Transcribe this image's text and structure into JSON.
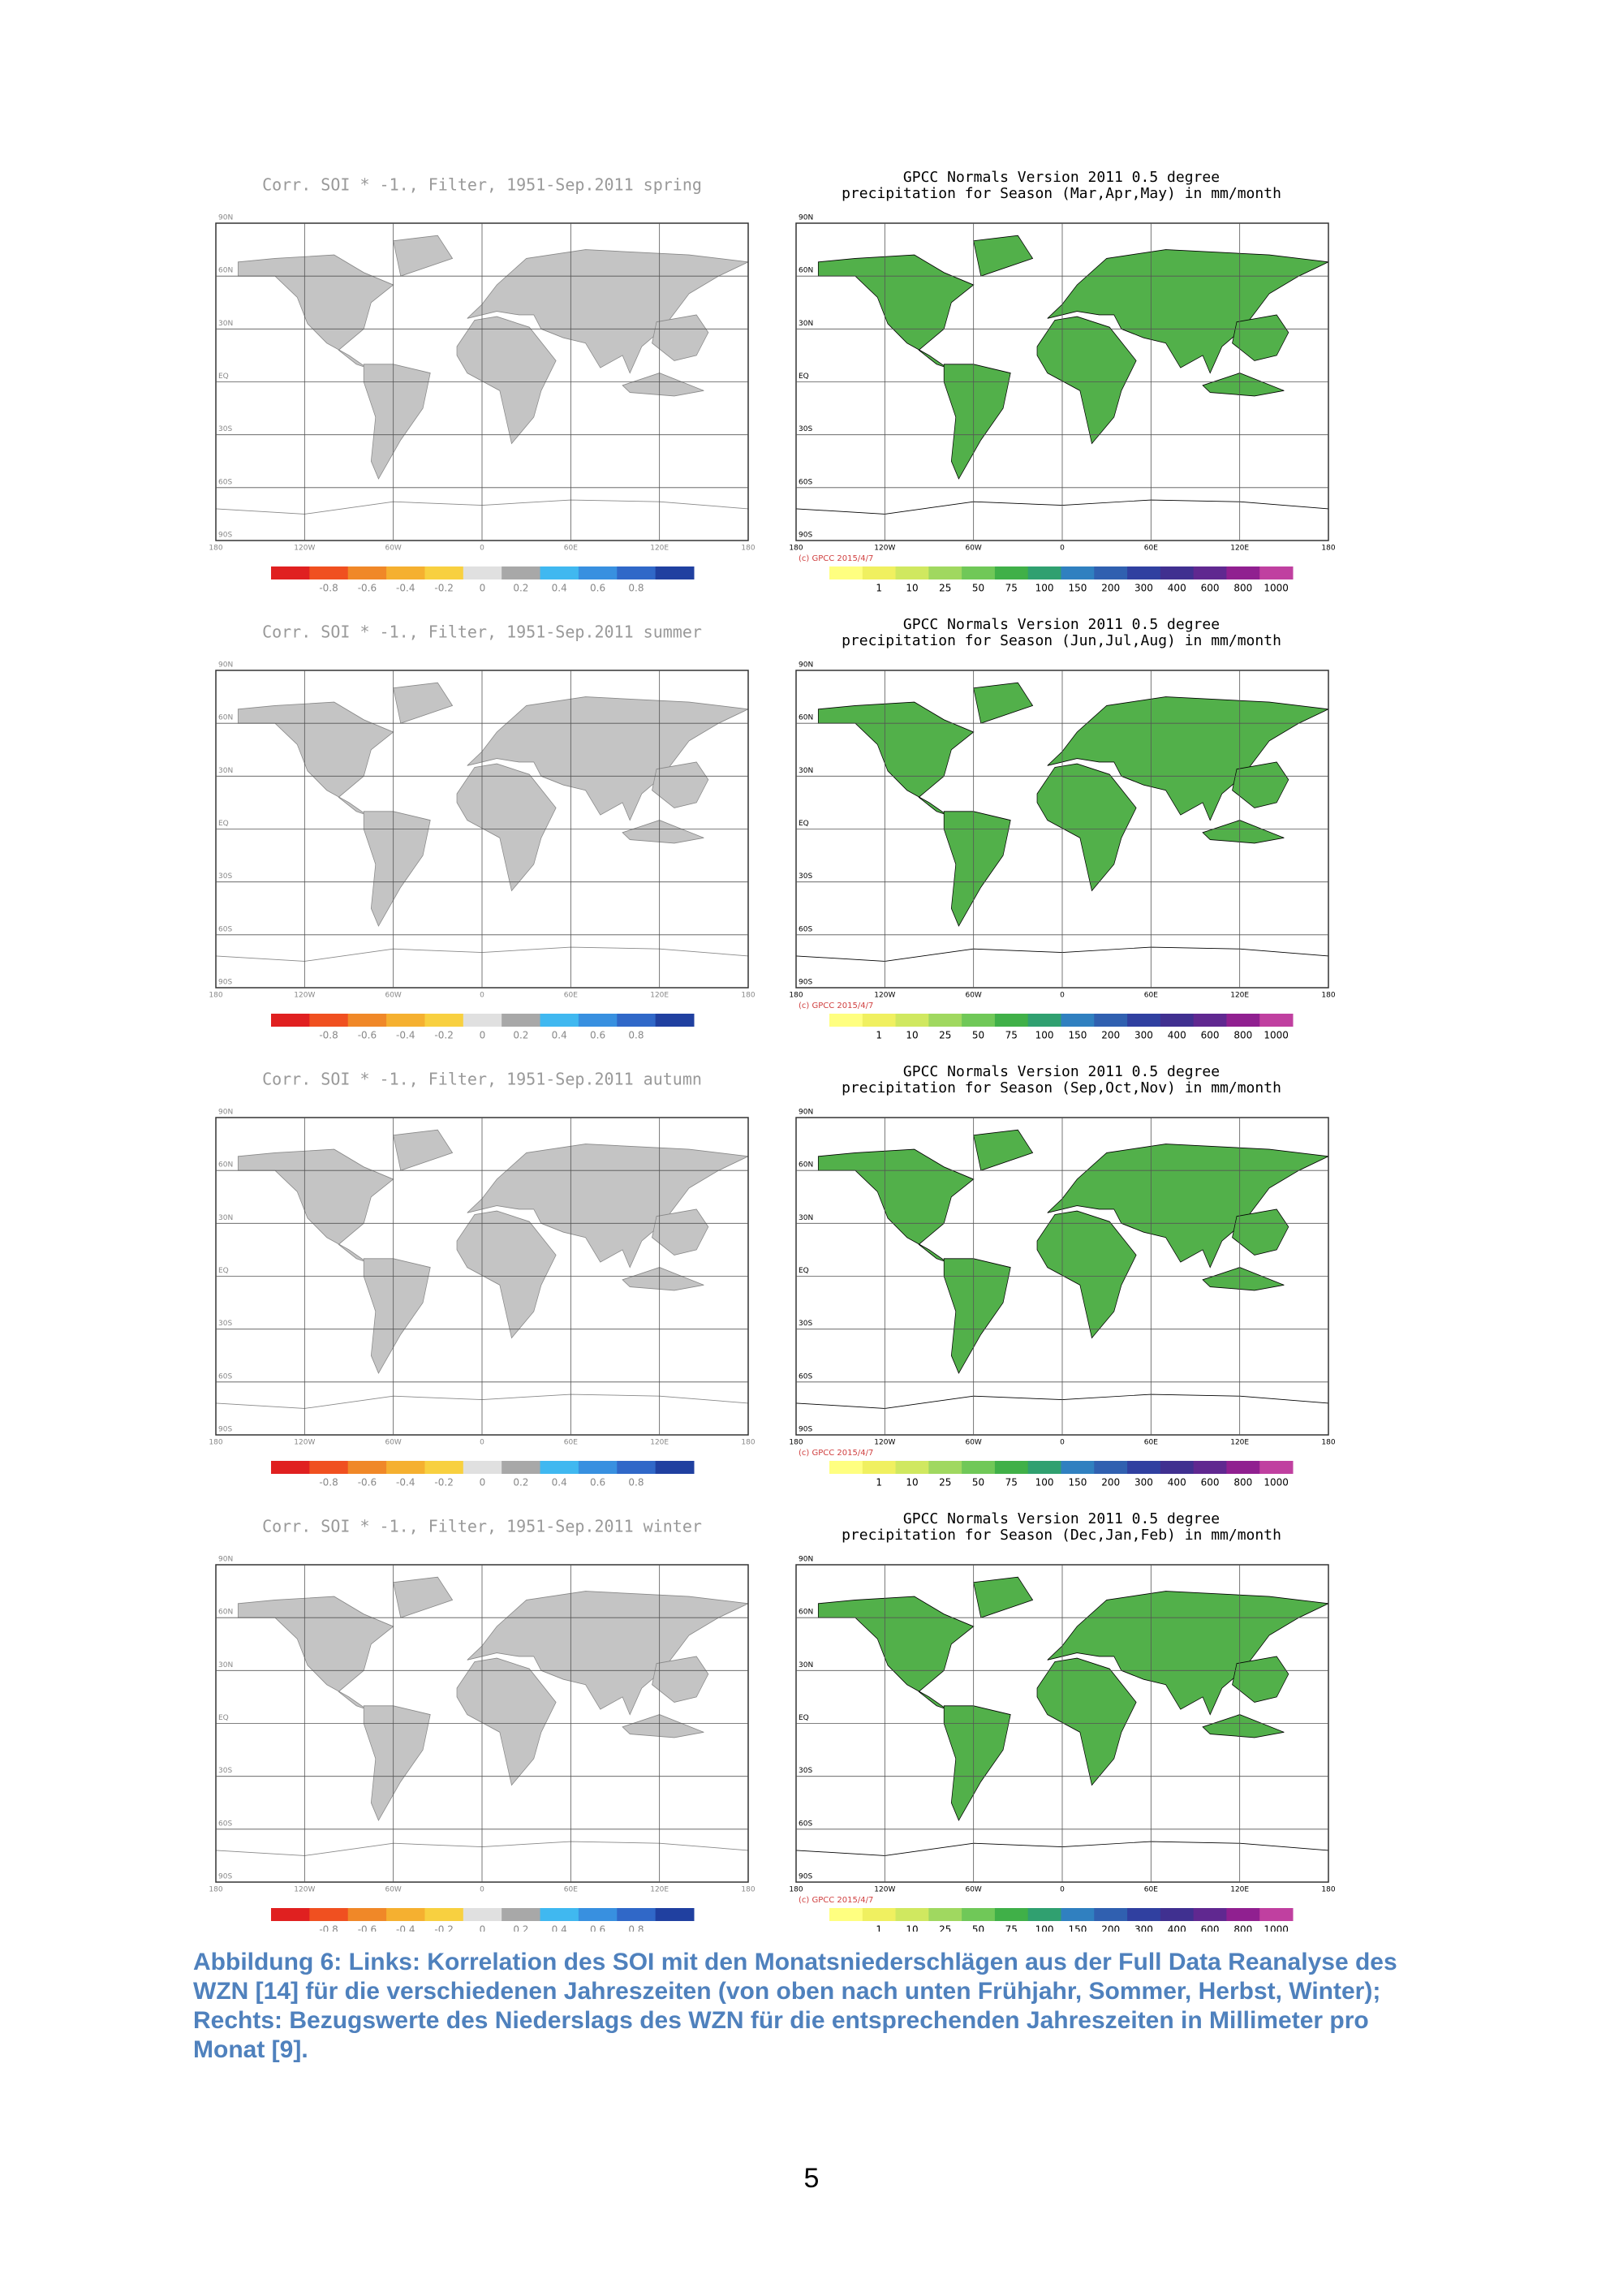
{
  "figure": {
    "lat_labels": [
      "90N",
      "60N",
      "30N",
      "EQ",
      "30S",
      "60S",
      "90S"
    ],
    "lon_labels": [
      "180",
      "120W",
      "60W",
      "0",
      "60E",
      "120E",
      "180"
    ],
    "right_copyright": "(c) GPCC 2015/4/7",
    "corr_colorbar": {
      "colors": [
        "#e02020",
        "#f05020",
        "#f08828",
        "#f5b030",
        "#f8d040",
        "#e0e0e0",
        "#a8a8a8",
        "#40b8f0",
        "#3890e0",
        "#3068c8",
        "#2040a0"
      ],
      "labels": [
        "-0.8",
        "-0.6",
        "-0.4",
        "-0.2",
        "0",
        "0.2",
        "0.4",
        "0.6",
        "0.8"
      ]
    },
    "precip_colorbar": {
      "colors": [
        "#ffff80",
        "#f0f060",
        "#d0e860",
        "#a0d860",
        "#70c858",
        "#40b048",
        "#30a070",
        "#3080c0",
        "#3060b0",
        "#3040a0",
        "#403090",
        "#602890",
        "#902090",
        "#c040a0"
      ],
      "labels": [
        "1",
        "10",
        "25",
        "50",
        "75",
        "100",
        "150",
        "200",
        "300",
        "400",
        "600",
        "800",
        "1000"
      ]
    },
    "rows": [
      {
        "left_title": "Corr. SOI * -1., Filter, 1951-Sep.2011 spring",
        "right_title": "GPCC Normals Version 2011 0.5 degree",
        "right_subtitle": "precipitation for Season (Mar,Apr,May) in mm/month"
      },
      {
        "left_title": "Corr. SOI * -1., Filter, 1951-Sep.2011 summer",
        "right_title": "GPCC Normals Version 2011 0.5 degree",
        "right_subtitle": "precipitation for Season (Jun,Jul,Aug) in mm/month"
      },
      {
        "left_title": "Corr. SOI * -1., Filter, 1951-Sep.2011 autumn",
        "right_title": "GPCC Normals Version 2011 0.5 degree",
        "right_subtitle": "precipitation for Season (Sep,Oct,Nov) in mm/month"
      },
      {
        "left_title": "Corr. SOI * -1., Filter, 1951-Sep.2011 winter",
        "right_title": "GPCC Normals Version 2011 0.5 degree",
        "right_subtitle": "precipitation for Season (Dec,Jan,Feb) in mm/month"
      }
    ]
  },
  "caption": [
    "Abbildung 6: Links: Korrelation des SOI mit den Monatsniederschlägen aus der Full Data Reanalyse des",
    "WZN [14] für die verschiedenen Jahreszeiten (von oben nach unten Frühjahr, Sommer, Herbst, Winter);",
    "Rechts: Bezugswerte des Niederslags des WZN für die entsprechenden Jahreszeiten in Millimeter pro",
    "Monat [9]."
  ],
  "page_number": "5"
}
